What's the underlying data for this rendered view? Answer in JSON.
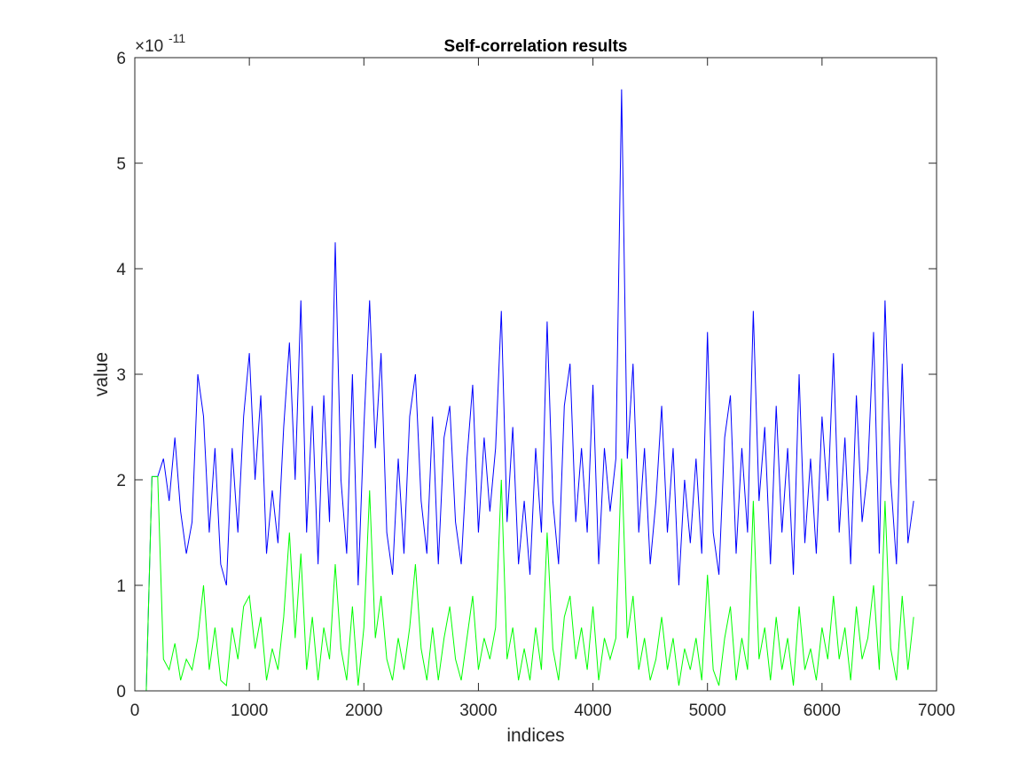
{
  "chart_data": {
    "type": "line",
    "title": "Self-correlation results",
    "x_label": "indices",
    "y_label": "value",
    "y_multiplier": {
      "base": "×10",
      "exponent": "-11"
    },
    "x": [
      0,
      50,
      100,
      150,
      200,
      250,
      300,
      350,
      400,
      450,
      500,
      550,
      600,
      650,
      700,
      750,
      800,
      850,
      900,
      950,
      1000,
      1050,
      1100,
      1150,
      1200,
      1250,
      1300,
      1350,
      1400,
      1450,
      1500,
      1550,
      1600,
      1650,
      1700,
      1750,
      1800,
      1850,
      1900,
      1950,
      2000,
      2050,
      2100,
      2150,
      2200,
      2250,
      2300,
      2350,
      2400,
      2450,
      2500,
      2550,
      2600,
      2650,
      2700,
      2750,
      2800,
      2850,
      2900,
      2950,
      3000,
      3050,
      3100,
      3150,
      3200,
      3250,
      3300,
      3350,
      3400,
      3450,
      3500,
      3550,
      3600,
      3650,
      3700,
      3750,
      3800,
      3850,
      3900,
      3950,
      4000,
      4050,
      4100,
      4150,
      4200,
      4250,
      4300,
      4350,
      4400,
      4450,
      4500,
      4550,
      4600,
      4650,
      4700,
      4750,
      4800,
      4850,
      4900,
      4950,
      5000,
      5050,
      5100,
      5150,
      5200,
      5250,
      5300,
      5350,
      5400,
      5450,
      5500,
      5550,
      5600,
      5650,
      5700,
      5750,
      5800,
      5850,
      5900,
      5950,
      6000,
      6050,
      6100,
      6150,
      6200,
      6250,
      6300,
      6350,
      6400,
      6450,
      6500,
      6550,
      6600,
      6650,
      6700,
      6750,
      6800
    ],
    "series": [
      {
        "color": "#0000ff",
        "values": [
          0,
          0,
          0,
          2.03,
          2.03,
          2.2,
          1.8,
          2.4,
          1.7,
          1.3,
          1.6,
          3.0,
          2.6,
          1.5,
          2.3,
          1.2,
          1.0,
          2.3,
          1.5,
          2.6,
          3.2,
          2.0,
          2.8,
          1.3,
          1.9,
          1.4,
          2.5,
          3.3,
          2.0,
          3.7,
          1.5,
          2.7,
          1.2,
          2.8,
          1.6,
          4.25,
          2.0,
          1.3,
          3.0,
          1.0,
          2.5,
          3.7,
          2.3,
          3.2,
          1.5,
          1.1,
          2.2,
          1.3,
          2.6,
          3.0,
          1.8,
          1.3,
          2.6,
          1.2,
          2.4,
          2.7,
          1.6,
          1.2,
          2.2,
          2.9,
          1.5,
          2.4,
          1.7,
          2.3,
          3.6,
          1.6,
          2.5,
          1.2,
          1.8,
          1.1,
          2.3,
          1.5,
          3.5,
          1.8,
          1.2,
          2.7,
          3.1,
          1.6,
          2.3,
          1.5,
          2.9,
          1.2,
          2.3,
          1.7,
          2.2,
          5.7,
          2.2,
          3.1,
          1.5,
          2.3,
          1.2,
          1.8,
          2.7,
          1.5,
          2.3,
          1.0,
          2.0,
          1.4,
          2.2,
          1.3,
          3.4,
          1.5,
          1.1,
          2.4,
          2.8,
          1.3,
          2.3,
          1.5,
          3.6,
          1.8,
          2.5,
          1.2,
          2.7,
          1.5,
          2.3,
          1.1,
          3.0,
          1.4,
          2.2,
          1.3,
          2.6,
          1.8,
          3.2,
          1.5,
          2.4,
          1.2,
          2.8,
          1.6,
          2.1,
          3.4,
          1.3,
          3.7,
          2.0,
          1.2,
          3.1,
          1.4,
          1.8
        ]
      },
      {
        "color": "#00ff00",
        "values": [
          0,
          0,
          0,
          2.03,
          2.03,
          0.3,
          0.2,
          0.45,
          0.1,
          0.3,
          0.2,
          0.5,
          1.0,
          0.2,
          0.6,
          0.1,
          0.05,
          0.6,
          0.3,
          0.8,
          0.9,
          0.4,
          0.7,
          0.1,
          0.4,
          0.2,
          0.7,
          1.5,
          0.5,
          1.3,
          0.2,
          0.7,
          0.1,
          0.6,
          0.3,
          1.2,
          0.4,
          0.1,
          0.8,
          0.05,
          0.6,
          1.9,
          0.5,
          0.9,
          0.3,
          0.1,
          0.5,
          0.2,
          0.6,
          1.2,
          0.4,
          0.1,
          0.6,
          0.1,
          0.5,
          0.8,
          0.3,
          0.1,
          0.5,
          0.9,
          0.2,
          0.5,
          0.3,
          0.6,
          2.0,
          0.3,
          0.6,
          0.1,
          0.4,
          0.1,
          0.6,
          0.2,
          1.5,
          0.4,
          0.1,
          0.7,
          0.9,
          0.3,
          0.6,
          0.2,
          0.8,
          0.1,
          0.5,
          0.3,
          0.5,
          2.2,
          0.5,
          0.9,
          0.2,
          0.5,
          0.1,
          0.3,
          0.7,
          0.2,
          0.5,
          0.05,
          0.4,
          0.2,
          0.5,
          0.1,
          1.1,
          0.2,
          0.05,
          0.5,
          0.8,
          0.1,
          0.5,
          0.2,
          1.8,
          0.3,
          0.6,
          0.1,
          0.7,
          0.2,
          0.5,
          0.05,
          0.8,
          0.2,
          0.4,
          0.1,
          0.6,
          0.3,
          0.9,
          0.3,
          0.6,
          0.1,
          0.8,
          0.3,
          0.5,
          1.0,
          0.2,
          1.8,
          0.4,
          0.1,
          0.9,
          0.2,
          0.7
        ]
      }
    ],
    "xlim": [
      0,
      7000
    ],
    "xticks": [
      0,
      1000,
      2000,
      3000,
      4000,
      5000,
      6000,
      7000
    ],
    "ylim": [
      0,
      6
    ],
    "yticks": [
      0,
      1,
      2,
      3,
      4,
      5,
      6
    ],
    "grid": false
  }
}
